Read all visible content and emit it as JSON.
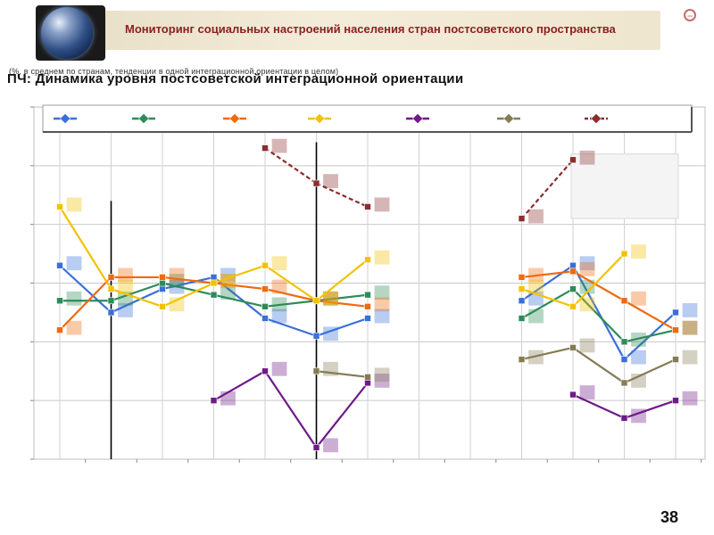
{
  "header": {
    "title": "Мониторинг социальных настроений населения стран постсоветского пространства",
    "close_icon": "close-icon"
  },
  "subtitle": {
    "back_text": "(%, в среднем по странам, тенденции в одной интеграционной ориентации в целом)",
    "front_text": "ПЧ: Динамика уровня постсоветской интеграционной ориентации"
  },
  "page_number": "38",
  "colors": {
    "blue": "#3a6fd8",
    "green": "#2e8b57",
    "orange": "#ee6a10",
    "yellow": "#f2c200",
    "purple": "#6e1a8a",
    "olive": "#857c55",
    "brown": "#8a2e2e"
  },
  "chart_data": {
    "type": "line",
    "title": "",
    "xlabel": "",
    "ylabel": "",
    "ylim": [
      0,
      60
    ],
    "grid": true,
    "legend": "top",
    "x": [
      1,
      2,
      3,
      4,
      5,
      6,
      7,
      8,
      9,
      10,
      11,
      12,
      13,
      14
    ],
    "series": [
      {
        "color": "blue",
        "values": [
          33,
          25,
          29,
          31,
          24,
          21,
          24,
          null,
          null,
          27,
          33,
          17,
          25,
          null
        ]
      },
      {
        "color": "green",
        "values": [
          27,
          27,
          30,
          28,
          26,
          27,
          28,
          null,
          null,
          24,
          29,
          20,
          22,
          null
        ]
      },
      {
        "color": "orange",
        "values": [
          22,
          31,
          31,
          30,
          29,
          27,
          26,
          null,
          null,
          31,
          32,
          27,
          22,
          null
        ]
      },
      {
        "color": "yellow",
        "values": [
          43,
          29,
          26,
          30,
          33,
          27,
          34,
          null,
          null,
          29,
          26,
          35,
          null,
          null
        ]
      },
      {
        "color": "purple",
        "values": [
          null,
          null,
          null,
          10,
          15,
          2,
          13,
          null,
          null,
          null,
          11,
          7,
          10,
          null
        ]
      },
      {
        "color": "olive",
        "values": [
          null,
          null,
          null,
          null,
          null,
          15,
          14,
          null,
          null,
          17,
          19,
          13,
          17,
          null
        ]
      },
      {
        "color": "brown",
        "values": [
          null,
          null,
          null,
          null,
          53,
          47,
          43,
          null,
          null,
          41,
          51,
          null,
          null,
          null
        ]
      }
    ]
  }
}
